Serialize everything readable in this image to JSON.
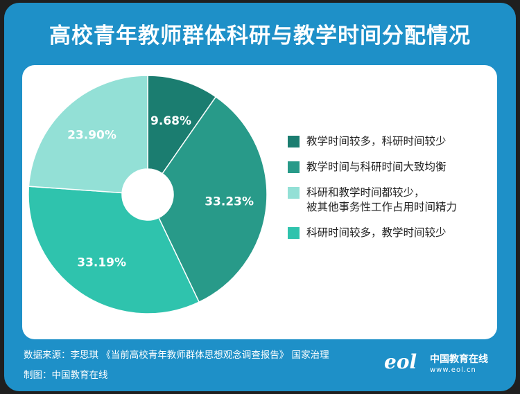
{
  "title": "高校青年教师群体科研与教学时间分配情况",
  "colors": {
    "frame": "#1e90c8",
    "card": "#ffffff"
  },
  "chart_data": {
    "type": "pie",
    "donut": true,
    "title": "高校青年教师群体科研与教学时间分配情况",
    "categories": [
      "教学时间较多，科研时间较少",
      "教学时间与科研时间大致均衡",
      "科研时间较多，教学时间较少",
      "科研和教学时间都较少，被其他事务性工作占用时间精力"
    ],
    "values": [
      9.68,
      33.23,
      33.19,
      23.9
    ],
    "labels": [
      "9.68%",
      "33.23%",
      "33.19%",
      "23.90%"
    ],
    "colors": [
      "#1b7d70",
      "#289a89",
      "#2fc3ad",
      "#93e0d6"
    ],
    "legend_position": "right"
  },
  "legend": [
    {
      "label": "教学时间较多，科研时间较少",
      "color": "#1b7d70"
    },
    {
      "label": "教学时间与科研时间大致均衡",
      "color": "#289a89"
    },
    {
      "label": "科研和教学时间都较少，\n被其他事务性工作占用时间精力",
      "color": "#93e0d6"
    },
    {
      "label": "科研时间较多，教学时间较少",
      "color": "#2fc3ad"
    }
  ],
  "footer": {
    "source": "数据来源：李思琪 《当前高校青年教师群体思想观念调查报告》 国家治理",
    "maker": "制图：中国教育在线"
  },
  "logo": {
    "mark": "eol",
    "name": "中国教育在线",
    "url": "www.eol.cn"
  }
}
